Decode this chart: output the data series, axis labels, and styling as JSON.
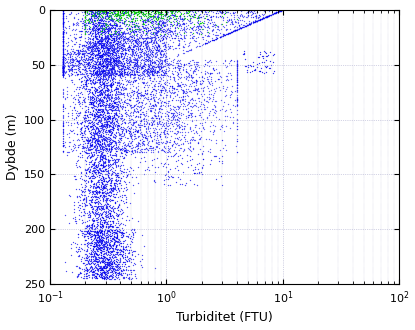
{
  "xlabel": "Turbiditet (FTU)",
  "ylabel": "Dybde (m)",
  "xlim": [
    0.1,
    100
  ],
  "ylim": [
    250,
    0
  ],
  "yticks": [
    0,
    50,
    100,
    150,
    200,
    250
  ],
  "blue_color": "#0000EE",
  "green_color": "#00CC00",
  "grid_color": "#AAAACC",
  "seed": 42,
  "figsize": [
    4.15,
    3.3
  ],
  "dpi": 100
}
